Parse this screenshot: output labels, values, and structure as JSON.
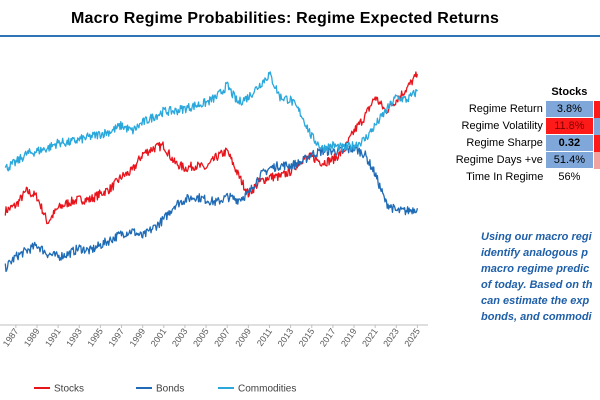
{
  "colors": {
    "stocks": "#e8141c",
    "bonds": "#1f6bb5",
    "commodities": "#2aa8dc",
    "note": "#1f5fa8",
    "cell_blue": "#7fa7d9",
    "cell_red": "#ff1a1a",
    "cell_red_soft": "#f2a39f"
  },
  "stats_table": {
    "header": "Stocks",
    "rows": [
      {
        "label": "Regime Return",
        "value": "3.8%"
      },
      {
        "label": "Regime Volatility",
        "value": "11.8%"
      },
      {
        "label": "Regime Sharpe",
        "value": "0.32"
      },
      {
        "label": "Regime Days +ve",
        "value": "51.4%"
      },
      {
        "label": "Time In Regime",
        "value": "56%"
      }
    ]
  },
  "note": {
    "lines": [
      "Using our macro regi",
      "identify analogous p",
      "macro regime predic",
      "of today. Based on th",
      "can estimate the exp",
      "bonds, and commodi"
    ]
  },
  "chart_data": {
    "type": "line",
    "title": "Macro Regime Probabilities: Regime Expected Returns",
    "x": [
      1986,
      1987,
      1988,
      1989,
      1990,
      1991,
      1992,
      1993,
      1994,
      1995,
      1996,
      1997,
      1998,
      1999,
      2000,
      2001,
      2002,
      2003,
      2004,
      2005,
      2006,
      2007,
      2008,
      2009,
      2010,
      2011,
      2012,
      2013,
      2014,
      2015,
      2016,
      2017,
      2018,
      2019,
      2020,
      2021,
      2022,
      2023,
      2024,
      2025
    ],
    "xlim": [
      1985.5,
      2026.0
    ],
    "ylim": [
      0,
      100
    ],
    "x_tick_labels": [
      "1987",
      "1989",
      "1991",
      "1993",
      "1995",
      "1997",
      "1999",
      "2001",
      "2003",
      "2005",
      "2007",
      "2009",
      "2011",
      "2013",
      "2015",
      "2017",
      "2019",
      "2021",
      "2023",
      "2025"
    ],
    "series": [
      {
        "name": "Stocks",
        "values": [
          40,
          42,
          47,
          45,
          36,
          41,
          43,
          44,
          44,
          46,
          48,
          52,
          54,
          60,
          62,
          63,
          57,
          55,
          56,
          55,
          59,
          61,
          53,
          46,
          50,
          52,
          52,
          54,
          58,
          59,
          57,
          58,
          61,
          68,
          73,
          80,
          75,
          79,
          83,
          88
        ]
      },
      {
        "name": "Bonds",
        "values": [
          20,
          24,
          26,
          28,
          25,
          24,
          25,
          27,
          26,
          28,
          30,
          32,
          33,
          31,
          34,
          37,
          42,
          44,
          45,
          44,
          43,
          45,
          44,
          46,
          52,
          55,
          56,
          56,
          57,
          60,
          61,
          61,
          61,
          62,
          60,
          53,
          43,
          40,
          40,
          41
        ]
      },
      {
        "name": "Commodities",
        "values": [
          55,
          57,
          60,
          61,
          62,
          64,
          64,
          65,
          66,
          67,
          68,
          70,
          68,
          71,
          73,
          75,
          75,
          76,
          77,
          78,
          80,
          84,
          78,
          80,
          84,
          88,
          80,
          79,
          74,
          66,
          62,
          63,
          62,
          63,
          65,
          70,
          75,
          80,
          79,
          82
        ]
      }
    ],
    "legend_position": "bottom",
    "grid": false
  }
}
